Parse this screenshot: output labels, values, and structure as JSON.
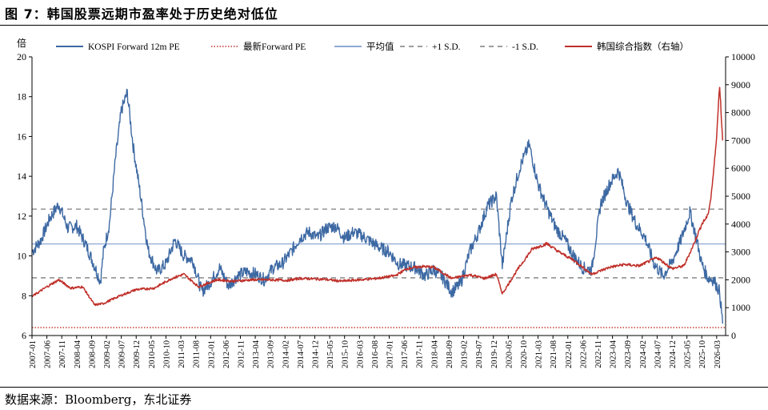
{
  "figure": {
    "title": "图 7：韩国股票远期市盈率处于历史绝对低位",
    "source": "数据来源：Bloomberg，东北证券"
  },
  "chart_data": {
    "type": "line",
    "title": "",
    "left_axis": {
      "label": "倍",
      "min": 6,
      "max": 20,
      "ticks": [
        6,
        8,
        10,
        12,
        14,
        16,
        18,
        20
      ]
    },
    "right_axis": {
      "label": "",
      "min": 0,
      "max": 10000,
      "ticks": [
        0,
        1000,
        2000,
        3000,
        4000,
        5000,
        6000,
        7000,
        8000,
        9000,
        10000
      ]
    },
    "x_range": [
      "2007-01",
      "2026-06"
    ],
    "x_tick_labels": [
      "2007-01",
      "2007-06",
      "2007-11",
      "2008-04",
      "2008-09",
      "2009-02",
      "2009-07",
      "2009-12",
      "2010-05",
      "2010-10",
      "2011-03",
      "2011-08",
      "2012-01",
      "2012-06",
      "2012-11",
      "2013-04",
      "2013-09",
      "2014-02",
      "2014-07",
      "2014-12",
      "2015-05",
      "2015-10",
      "2016-03",
      "2016-08",
      "2017-01",
      "2017-06",
      "2017-11",
      "2018-04",
      "2018-09",
      "2019-02",
      "2019-07",
      "2019-12",
      "2020-05",
      "2020-10",
      "2021-03",
      "2021-08",
      "2022-01",
      "2022-06",
      "2022-11",
      "2023-04",
      "2023-09",
      "2024-02",
      "2024-07",
      "2024-12",
      "2025-05",
      "2025-10",
      "2026-03"
    ],
    "legend_position": "top",
    "grid": false,
    "reference_lines": [
      {
        "name": "最新Forward PE",
        "value": 6.4,
        "style": "dotted",
        "color": "#c0302a"
      },
      {
        "name": "平均值",
        "value": 10.6,
        "style": "solid",
        "color": "#8ea9d6"
      },
      {
        "name": "+1 S.D.",
        "value": 12.35,
        "style": "dashed",
        "color": "#7f7f7f"
      },
      {
        "name": "-1 S.D.",
        "value": 8.9,
        "style": "dashed",
        "color": "#7f7f7f"
      }
    ],
    "series": [
      {
        "name": "KOSPI Forward 12m PE",
        "axis": "left",
        "color": "#3d69a3",
        "points": [
          [
            "2007-01",
            10.2
          ],
          [
            "2007-04",
            10.8
          ],
          [
            "2007-07",
            11.9
          ],
          [
            "2007-10",
            12.6
          ],
          [
            "2008-01",
            11.4
          ],
          [
            "2008-04",
            11.5
          ],
          [
            "2008-07",
            10.6
          ],
          [
            "2008-10",
            9.5
          ],
          [
            "2008-12",
            8.7
          ],
          [
            "2009-01",
            10.2
          ],
          [
            "2009-03",
            11.6
          ],
          [
            "2009-05",
            14.8
          ],
          [
            "2009-07",
            17.3
          ],
          [
            "2009-09",
            18.2
          ],
          [
            "2009-11",
            15.5
          ],
          [
            "2010-01",
            13.5
          ],
          [
            "2010-04",
            10.3
          ],
          [
            "2010-07",
            9.2
          ],
          [
            "2010-10",
            9.6
          ],
          [
            "2011-01",
            10.8
          ],
          [
            "2011-04",
            10.0
          ],
          [
            "2011-07",
            9.8
          ],
          [
            "2011-10",
            8.2
          ],
          [
            "2012-01",
            8.7
          ],
          [
            "2012-04",
            9.4
          ],
          [
            "2012-07",
            8.5
          ],
          [
            "2012-10",
            9.0
          ],
          [
            "2013-01",
            9.2
          ],
          [
            "2013-04",
            9.1
          ],
          [
            "2013-07",
            8.8
          ],
          [
            "2013-10",
            9.4
          ],
          [
            "2014-01",
            9.6
          ],
          [
            "2014-04",
            10.2
          ],
          [
            "2014-07",
            10.9
          ],
          [
            "2014-10",
            11.2
          ],
          [
            "2015-01",
            10.9
          ],
          [
            "2015-04",
            11.4
          ],
          [
            "2015-07",
            11.5
          ],
          [
            "2015-10",
            10.9
          ],
          [
            "2016-01",
            11.2
          ],
          [
            "2016-04",
            11.0
          ],
          [
            "2016-07",
            10.7
          ],
          [
            "2016-10",
            10.4
          ],
          [
            "2017-01",
            10.2
          ],
          [
            "2017-04",
            9.6
          ],
          [
            "2017-07",
            9.5
          ],
          [
            "2017-10",
            9.4
          ],
          [
            "2018-01",
            9.0
          ],
          [
            "2018-04",
            9.3
          ],
          [
            "2018-07",
            8.9
          ],
          [
            "2018-10",
            8.2
          ],
          [
            "2019-01",
            8.6
          ],
          [
            "2019-04",
            10.2
          ],
          [
            "2019-07",
            11.2
          ],
          [
            "2019-10",
            12.5
          ],
          [
            "2020-01",
            13.0
          ],
          [
            "2020-03",
            9.5
          ],
          [
            "2020-06",
            12.8
          ],
          [
            "2020-09",
            14.5
          ],
          [
            "2020-12",
            15.6
          ],
          [
            "2021-03",
            13.6
          ],
          [
            "2021-06",
            12.4
          ],
          [
            "2021-09",
            11.4
          ],
          [
            "2021-12",
            10.8
          ],
          [
            "2022-03",
            10.0
          ],
          [
            "2022-06",
            9.4
          ],
          [
            "2022-09",
            9.3
          ],
          [
            "2022-12",
            12.6
          ],
          [
            "2023-03",
            13.6
          ],
          [
            "2023-06",
            14.3
          ],
          [
            "2023-09",
            12.6
          ],
          [
            "2023-12",
            11.6
          ],
          [
            "2024-03",
            10.9
          ],
          [
            "2024-06",
            9.6
          ],
          [
            "2024-09",
            9.0
          ],
          [
            "2024-12",
            9.7
          ],
          [
            "2025-03",
            10.8
          ],
          [
            "2025-06",
            12.2
          ],
          [
            "2025-08",
            11.0
          ],
          [
            "2025-10",
            9.6
          ],
          [
            "2025-12",
            8.9
          ],
          [
            "2026-02",
            8.8
          ],
          [
            "2026-04",
            8.2
          ],
          [
            "2026-05",
            6.6
          ]
        ]
      },
      {
        "name": "韩国综合指数（右轴）",
        "axis": "right",
        "color": "#c0302a",
        "points": [
          [
            "2007-01",
            1400
          ],
          [
            "2007-06",
            1750
          ],
          [
            "2007-10",
            2000
          ],
          [
            "2008-02",
            1700
          ],
          [
            "2008-06",
            1750
          ],
          [
            "2008-10",
            1100
          ],
          [
            "2009-01",
            1150
          ],
          [
            "2009-06",
            1400
          ],
          [
            "2009-12",
            1650
          ],
          [
            "2010-06",
            1700
          ],
          [
            "2010-12",
            2050
          ],
          [
            "2011-04",
            2200
          ],
          [
            "2011-09",
            1750
          ],
          [
            "2012-03",
            2000
          ],
          [
            "2012-09",
            1950
          ],
          [
            "2013-03",
            2000
          ],
          [
            "2013-09",
            2000
          ],
          [
            "2014-03",
            1980
          ],
          [
            "2014-07",
            2050
          ],
          [
            "2015-03",
            2020
          ],
          [
            "2015-09",
            1950
          ],
          [
            "2016-03",
            2000
          ],
          [
            "2016-09",
            2050
          ],
          [
            "2017-03",
            2150
          ],
          [
            "2017-07",
            2400
          ],
          [
            "2017-12",
            2480
          ],
          [
            "2018-04",
            2450
          ],
          [
            "2018-10",
            2050
          ],
          [
            "2019-04",
            2180
          ],
          [
            "2019-09",
            2050
          ],
          [
            "2020-01",
            2200
          ],
          [
            "2020-03",
            1500
          ],
          [
            "2020-08",
            2350
          ],
          [
            "2021-01",
            3100
          ],
          [
            "2021-06",
            3300
          ],
          [
            "2021-10",
            3000
          ],
          [
            "2022-03",
            2700
          ],
          [
            "2022-09",
            2200
          ],
          [
            "2023-03",
            2450
          ],
          [
            "2023-08",
            2550
          ],
          [
            "2024-01",
            2500
          ],
          [
            "2024-07",
            2800
          ],
          [
            "2024-12",
            2400
          ],
          [
            "2025-04",
            2500
          ],
          [
            "2025-07",
            3200
          ],
          [
            "2025-10",
            4000
          ],
          [
            "2025-12",
            4300
          ],
          [
            "2026-01",
            4900
          ],
          [
            "2026-02",
            5900
          ],
          [
            "2026-03",
            7200
          ],
          [
            "2026-04",
            9000
          ],
          [
            "2026-05",
            7000
          ]
        ]
      }
    ],
    "legend": [
      {
        "label": "KOSPI Forward 12m PE",
        "style": "solid",
        "color": "#3d69a3"
      },
      {
        "label": "最新Forward PE",
        "style": "dotted",
        "color": "#c0302a"
      },
      {
        "label": "平均值",
        "style": "solid",
        "color": "#8ea9d6"
      },
      {
        "label": "+1 S.D.",
        "style": "dashed",
        "color": "#7f7f7f"
      },
      {
        "label": "-1 S.D.",
        "style": "dashed",
        "color": "#7f7f7f"
      },
      {
        "label": "韩国综合指数（右轴）",
        "style": "solid",
        "color": "#c0302a"
      }
    ]
  }
}
